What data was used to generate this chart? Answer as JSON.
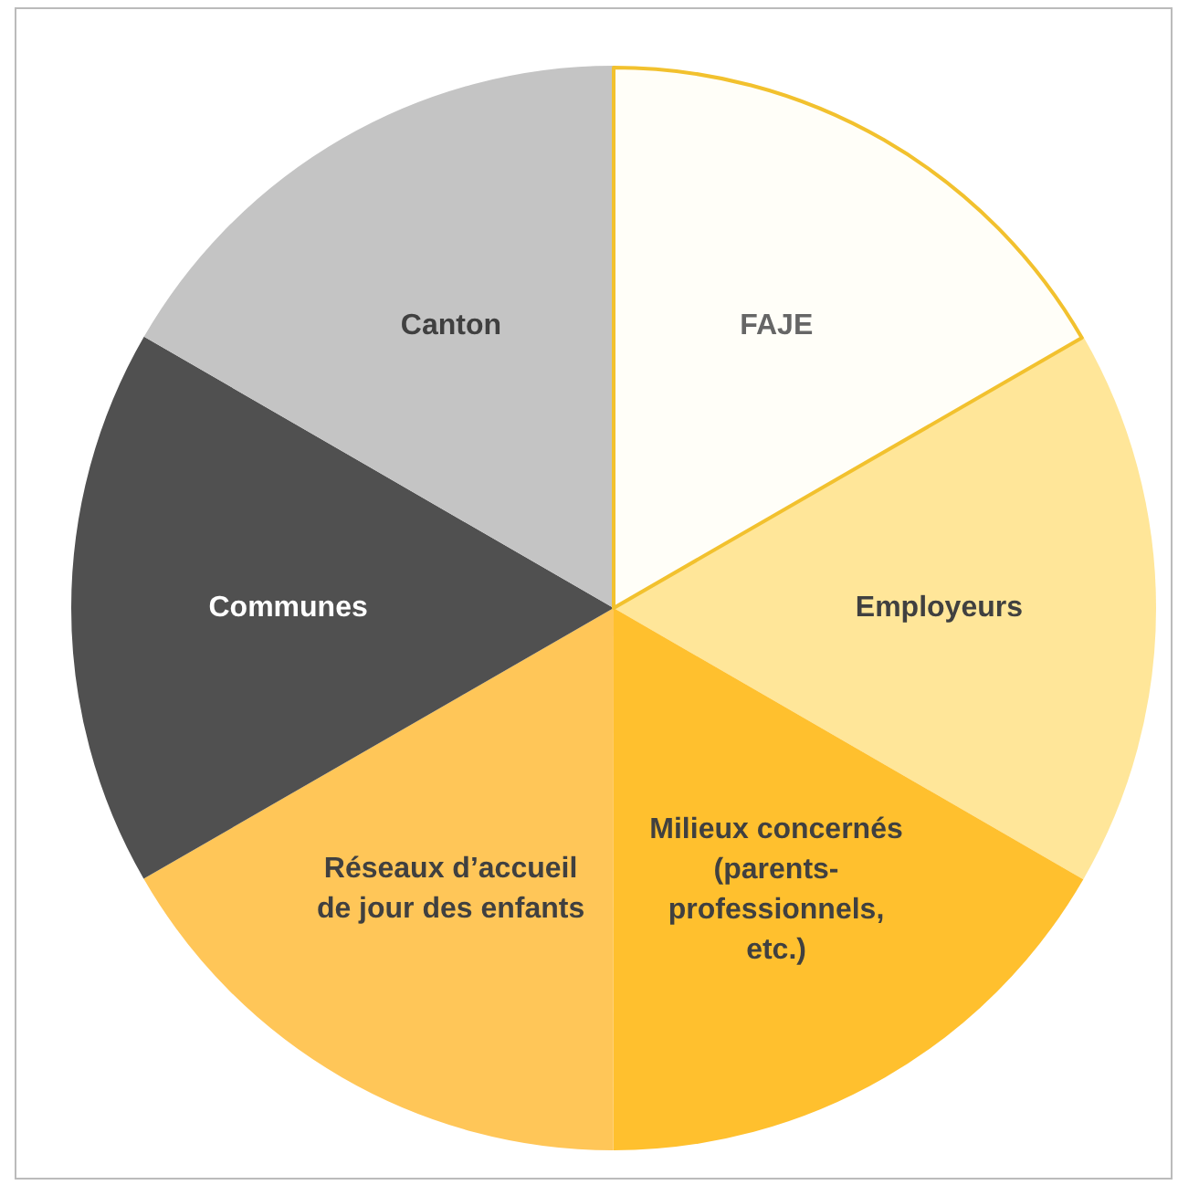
{
  "chart_data": {
    "type": "pie",
    "categories": [
      "FAJE",
      "Employeurs",
      "Milieux concernés (parents-professionnels, etc.)",
      "Réseaux d’accueil de jour des enfants",
      "Communes",
      "Canton"
    ],
    "values": [
      16.67,
      16.67,
      16.67,
      16.67,
      16.66,
      16.66
    ],
    "colors": [
      "#fffef8",
      "#ffe699",
      "#ffc02e",
      "#ffc658",
      "#505050",
      "#c4c4c4"
    ],
    "legend": false
  }
}
